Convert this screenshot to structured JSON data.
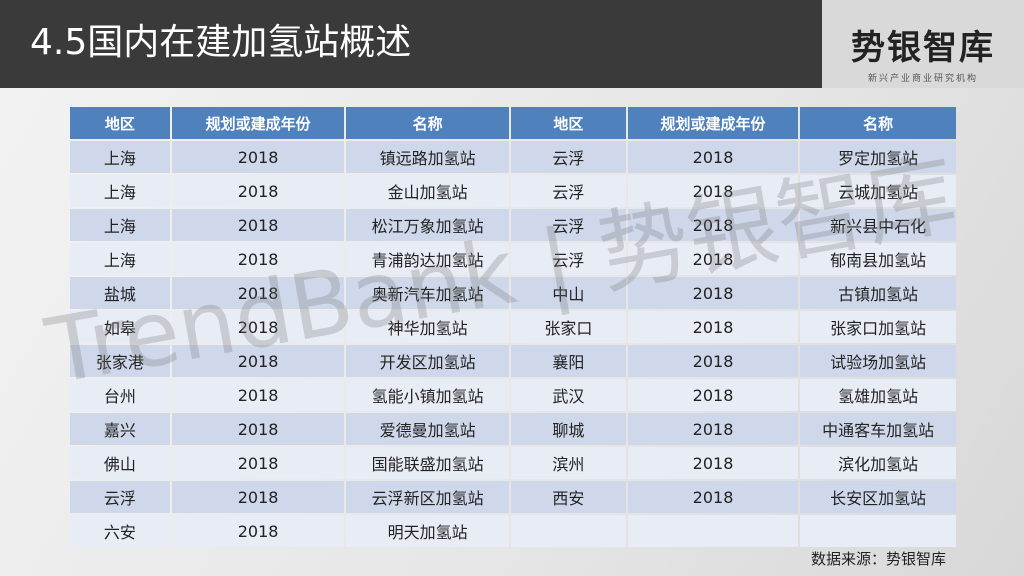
{
  "title": "4.5国内在建加氢站概述",
  "logo": {
    "main": "势银智库",
    "sub": "新兴产业商业研究机构"
  },
  "watermark": "TrendBank | 势银智库",
  "table": {
    "headers": [
      "地区",
      "规划或建成年份",
      "名称",
      "地区",
      "规划或建成年份",
      "名称"
    ],
    "rows": [
      [
        "上海",
        "2018",
        "镇远路加氢站",
        "云浮",
        "2018",
        "罗定加氢站"
      ],
      [
        "上海",
        "2018",
        "金山加氢站",
        "云浮",
        "2018",
        "云城加氢站"
      ],
      [
        "上海",
        "2018",
        "松江万象加氢站",
        "云浮",
        "2018",
        "新兴县中石化"
      ],
      [
        "上海",
        "2018",
        "青浦韵达加氢站",
        "云浮",
        "2018",
        "郁南县加氢站"
      ],
      [
        "盐城",
        "2018",
        "奥新汽车加氢站",
        "中山",
        "2018",
        "古镇加氢站"
      ],
      [
        "如皋",
        "2018",
        "神华加氢站",
        "张家口",
        "2018",
        "张家口加氢站"
      ],
      [
        "张家港",
        "2018",
        "开发区加氢站",
        "襄阳",
        "2018",
        "试验场加氢站"
      ],
      [
        "台州",
        "2018",
        "氢能小镇加氢站",
        "武汉",
        "2018",
        "氢雄加氢站"
      ],
      [
        "嘉兴",
        "2018",
        "爱德曼加氢站",
        "聊城",
        "2018",
        "中通客车加氢站"
      ],
      [
        "佛山",
        "2018",
        "国能联盛加氢站",
        "滨州",
        "2018",
        "滨化加氢站"
      ],
      [
        "云浮",
        "2018",
        "云浮新区加氢站",
        "西安",
        "2018",
        "长安区加氢站"
      ],
      [
        "六安",
        "2018",
        "明天加氢站",
        "",
        "",
        ""
      ]
    ]
  },
  "source": "数据来源：势银智库"
}
